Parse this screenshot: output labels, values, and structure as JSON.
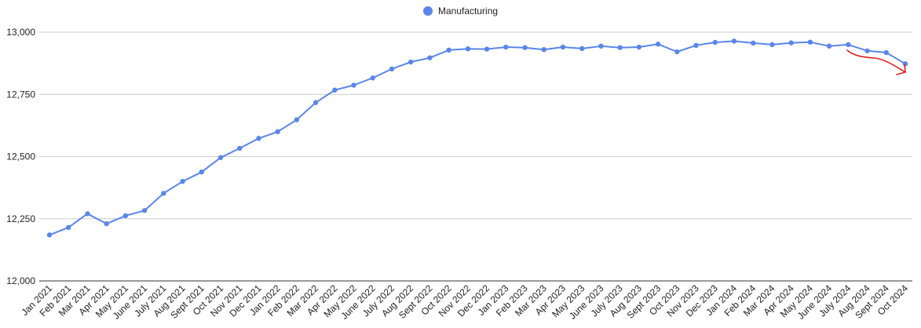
{
  "chart_data": {
    "type": "line",
    "legend": {
      "position": "top-center"
    },
    "grid": true,
    "ylim": [
      12000,
      13000
    ],
    "yticks": [
      12000,
      12250,
      12500,
      12750,
      13000
    ],
    "ytick_labels": [
      "12,000",
      "12,250",
      "12,500",
      "12,750",
      "13,000"
    ],
    "x": [
      "Jan 2021",
      "Feb 2021",
      "Mar 2021",
      "Apr 2021",
      "May 2021",
      "June 2021",
      "July 2021",
      "Aug 2021",
      "Sept 2021",
      "Oct 2021",
      "Nov 2021",
      "Dec 2021",
      "Jan 2022",
      "Feb 2022",
      "Mar 2022",
      "Apr 2022",
      "May 2022",
      "June 2022",
      "July 2022",
      "Aug 2022",
      "Sept 2022",
      "Oct 2022",
      "Nov 2022",
      "Dec 2022",
      "Jan 2023",
      "Feb 2023",
      "Mar 2023",
      "Apr 2023",
      "May 2023",
      "June 2023",
      "July 2023",
      "Aug 2023",
      "Sept 2023",
      "Oct 2023",
      "Nov 2023",
      "Dec 2023",
      "Jan 2024",
      "Feb 2024",
      "Mar 2024",
      "Apr 2024",
      "May 2024",
      "June 2024",
      "July 2024",
      "Aug 2024",
      "Sept 2024",
      "Oct 2024"
    ],
    "series": [
      {
        "name": "Manufacturing",
        "color": "#5a86ea",
        "values": [
          12185,
          12215,
          12270,
          12230,
          12262,
          12283,
          12352,
          12400,
          12438,
          12496,
          12533,
          12573,
          12600,
          12648,
          12717,
          12767,
          12787,
          12816,
          12852,
          12880,
          12897,
          12928,
          12933,
          12932,
          12940,
          12938,
          12930,
          12940,
          12934,
          12944,
          12938,
          12940,
          12952,
          12921,
          12947,
          12959,
          12964,
          12956,
          12950,
          12957,
          12960,
          12944,
          12950,
          12925,
          12918,
          12873
        ]
      }
    ],
    "annotation": {
      "shape": "red hand-drawn arrow",
      "color": "#e0201c",
      "near": [
        "Aug 2024",
        "Oct 2024"
      ]
    }
  }
}
